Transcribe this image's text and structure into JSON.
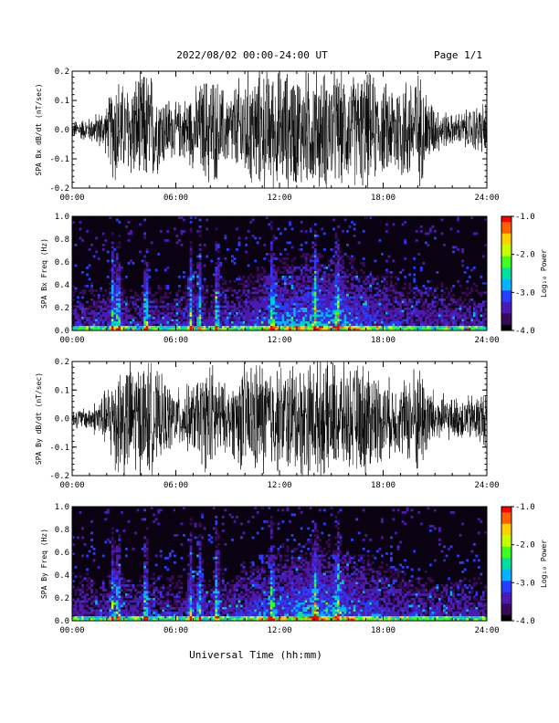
{
  "header": {
    "date_range": "2022/08/02  00:00-24:00 UT",
    "page": "Page 1/1"
  },
  "colors": {
    "frame": "#000000",
    "trace": "#000000",
    "background": "#ffffff",
    "colormap": [
      "#000000",
      "#3a0a5a",
      "#4b1bb0",
      "#2a3cff",
      "#00b4ff",
      "#00e0a0",
      "#40ff20",
      "#c8ff00",
      "#ffd000",
      "#ff6000",
      "#ff0000"
    ]
  },
  "chart_data": [
    {
      "type": "line",
      "panel": "Bx time series",
      "ylabel": "SPA Bx dB/dt (nT/sec)",
      "ylim": [
        -0.2,
        0.2
      ],
      "yticks": [
        "0.2",
        "0.1",
        "0.0",
        "-0.1",
        "-0.2"
      ],
      "xlim": [
        0,
        24
      ],
      "xticks": [
        "00:00",
        "06:00",
        "12:00",
        "18:00",
        "24:00"
      ],
      "series": [
        {
          "x": [
            0,
            1,
            2,
            2.5,
            3,
            4,
            4.5,
            5,
            6,
            7,
            8,
            9,
            10,
            10.5,
            11,
            12,
            13,
            13.5,
            14,
            15,
            16,
            17,
            18,
            19,
            20,
            21,
            22,
            23,
            24
          ],
          "amplitude": [
            0.03,
            0.04,
            0.08,
            0.2,
            0.15,
            0.2,
            0.2,
            0.14,
            0.09,
            0.13,
            0.2,
            0.12,
            0.2,
            0.2,
            0.2,
            0.2,
            0.2,
            0.2,
            0.2,
            0.2,
            0.18,
            0.2,
            0.15,
            0.18,
            0.2,
            0.08,
            0.05,
            0.07,
            0.1
          ]
        }
      ]
    },
    {
      "type": "heatmap",
      "panel": "Bx spectrogram",
      "ylabel": "SPA Bx Freq (Hz)",
      "ylim": [
        0.0,
        1.0
      ],
      "yticks": [
        "1.0",
        "0.8",
        "0.6",
        "0.4",
        "0.2",
        "0.0"
      ],
      "xlim": [
        0,
        24
      ],
      "xticks": [
        "00:00",
        "06:00",
        "12:00",
        "18:00",
        "24:00"
      ],
      "colorbar": {
        "label": "Log₁₀ Power",
        "range": [
          -4.0,
          -1.0
        ],
        "ticks": [
          "-1.0",
          "-2.0",
          "-3.0",
          "-4.0"
        ]
      },
      "bright_bands_hours": [
        2.3,
        2.6,
        4.2,
        6.8,
        7.3,
        8.3,
        11.5,
        14.0,
        15.3
      ]
    },
    {
      "type": "line",
      "panel": "By time series",
      "ylabel": "SPA By dB/dt (nT/sec)",
      "ylim": [
        -0.2,
        0.2
      ],
      "yticks": [
        "0.2",
        "0.1",
        "0.0",
        "-0.1",
        "-0.2"
      ],
      "xlim": [
        0,
        24
      ],
      "xticks": [
        "00:00",
        "06:00",
        "12:00",
        "18:00",
        "24:00"
      ],
      "series": [
        {
          "x": [
            0,
            1,
            2,
            2.5,
            3,
            4,
            4.5,
            5,
            6,
            7,
            8,
            9,
            10,
            10.5,
            11,
            12,
            13,
            13.5,
            14,
            15,
            16,
            17,
            18,
            19,
            20,
            21,
            22,
            23,
            24
          ],
          "amplitude": [
            0.03,
            0.04,
            0.1,
            0.2,
            0.2,
            0.2,
            0.2,
            0.15,
            0.1,
            0.12,
            0.2,
            0.1,
            0.2,
            0.2,
            0.2,
            0.18,
            0.2,
            0.2,
            0.2,
            0.2,
            0.17,
            0.2,
            0.14,
            0.12,
            0.2,
            0.09,
            0.07,
            0.08,
            0.1
          ]
        }
      ]
    },
    {
      "type": "heatmap",
      "panel": "By spectrogram",
      "ylabel": "SPA By Freq (Hz)",
      "ylim": [
        0.0,
        1.0
      ],
      "yticks": [
        "1.0",
        "0.8",
        "0.6",
        "0.4",
        "0.2",
        "0.0"
      ],
      "xlim": [
        0,
        24
      ],
      "xticks": [
        "00:00",
        "06:00",
        "12:00",
        "18:00",
        "24:00"
      ],
      "colorbar": {
        "label": "Log₁₀ Power",
        "range": [
          -4.0,
          -1.0
        ],
        "ticks": [
          "-1.0",
          "-2.0",
          "-3.0",
          "-4.0"
        ]
      },
      "bright_bands_hours": [
        2.3,
        2.6,
        4.2,
        6.8,
        7.3,
        8.3,
        11.5,
        14.0,
        15.3
      ]
    }
  ],
  "footer": {
    "xlabel": "Universal Time (hh:mm)"
  }
}
